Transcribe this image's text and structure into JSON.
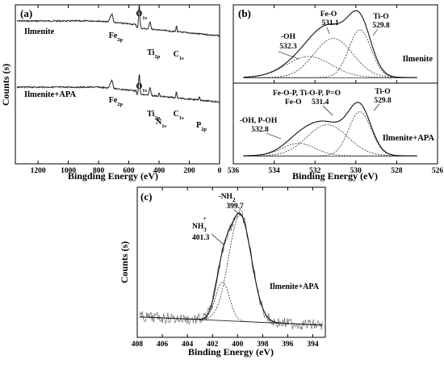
{
  "chart_data": [
    {
      "panel": "(a)",
      "type": "line",
      "xlabel": "Bingding Energy (eV)",
      "ylabel": "Counts (s)",
      "xlim": [
        1350,
        0
      ],
      "xticks": [
        "1200",
        "1000",
        "800",
        "600",
        "400",
        "200",
        "0"
      ],
      "series": [
        {
          "name": "Ilmenite"
        },
        {
          "name": "Ilmenite+APA"
        }
      ],
      "peak_labels_top": [
        {
          "text": "O",
          "sub": "1s",
          "x": 531
        },
        {
          "text": "Fe",
          "sub": "2p",
          "x": 711
        },
        {
          "text": "Ti",
          "sub": "2p",
          "x": 458
        },
        {
          "text": "C",
          "sub": "1s",
          "x": 285
        }
      ],
      "peak_labels_bottom": [
        {
          "text": "O",
          "sub": "1s",
          "x": 531
        },
        {
          "text": "Fe",
          "sub": "2p",
          "x": 711
        },
        {
          "text": "Ti",
          "sub": "2p",
          "x": 458
        },
        {
          "text": "N",
          "sub": "1s",
          "x": 400
        },
        {
          "text": "C",
          "sub": "1s",
          "x": 285
        },
        {
          "text": "P",
          "sub": "2p",
          "x": 133
        }
      ]
    },
    {
      "panel": "(b)",
      "type": "line",
      "xlabel": "Binding Energy (eV)",
      "xlim": [
        536,
        526
      ],
      "xticks": [
        "536",
        "534",
        "532",
        "530",
        "528",
        "526"
      ],
      "top": {
        "sample": "Ilmenite",
        "peaks": [
          {
            "label": "-OH",
            "value": "532.3",
            "center": 532.3,
            "height": 0.42,
            "width": 1.1
          },
          {
            "label": "Fe-O",
            "value": "531.1",
            "center": 531.1,
            "height": 0.78,
            "width": 0.95
          },
          {
            "label": "Ti-O",
            "value": "529.8",
            "center": 529.8,
            "height": 0.95,
            "width": 0.55
          }
        ]
      },
      "bottom": {
        "sample": "Ilmenite+APA",
        "peaks": [
          {
            "label": "-OH, P-OH",
            "value": "532.8",
            "center": 532.8,
            "height": 0.25,
            "width": 0.8
          },
          {
            "label": "Fe-O-P, Ti-O-P, P=O",
            "label2": "Fe-O",
            "value": "531.4",
            "center": 531.4,
            "height": 0.62,
            "width": 1.0
          },
          {
            "label": "Ti-O",
            "value": "529.8",
            "center": 529.8,
            "height": 0.88,
            "width": 0.55
          }
        ]
      }
    },
    {
      "panel": "(c)",
      "type": "line",
      "xlabel": "Binding Energy (eV)",
      "ylabel": "Counts (s)",
      "xlim": [
        408,
        393
      ],
      "xticks": [
        "408",
        "406",
        "404",
        "402",
        "400",
        "398",
        "396",
        "394"
      ],
      "sample": "Ilmenite+APA",
      "peaks": [
        {
          "label": "-NH",
          "sub": "2",
          "value": "399.7",
          "center": 399.8,
          "height": 0.88,
          "width": 0.9
        },
        {
          "label": "NH",
          "sub": "3",
          "sup": "+",
          "value": "401.3",
          "center": 401.2,
          "height": 0.32,
          "width": 0.55
        }
      ]
    }
  ]
}
